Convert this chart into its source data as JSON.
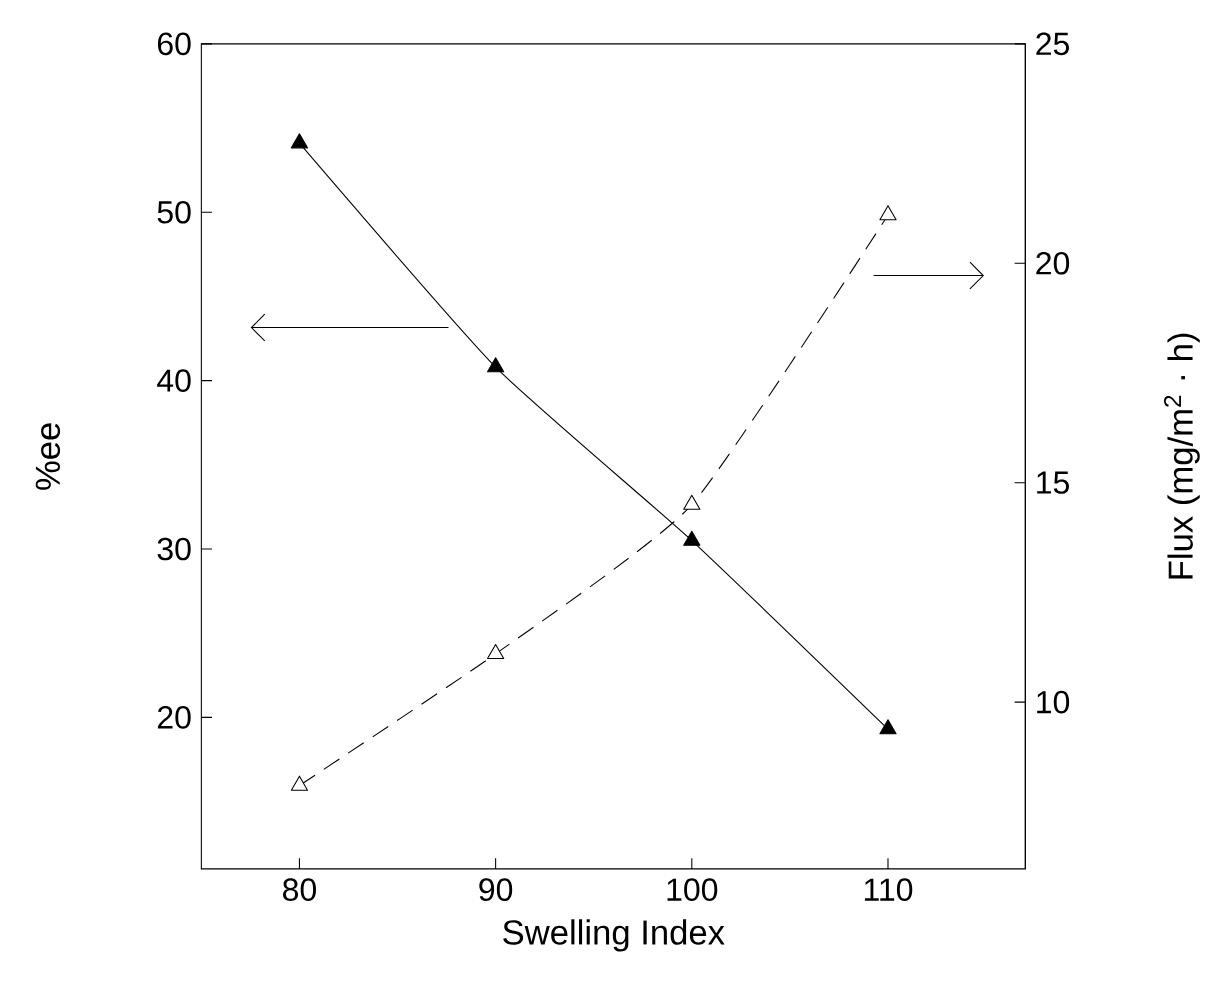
{
  "chart_data": {
    "type": "line",
    "xlabel": "Swelling Index",
    "ylabel": "%ee",
    "y2label": "Flux (mg/m$^{2}$ · h)",
    "x": [
      80,
      90,
      100,
      110
    ],
    "series": [
      {
        "color": "#000000",
        "values": [
          54.1,
          40.8,
          30.5,
          19.3
        ],
        "line_style": "solid",
        "marker": "triangle"
      },
      {
        "color": "#000000",
        "values": [
          8.1,
          11.1,
          14.5,
          21.1
        ],
        "line_style": "dashed",
        "marker": "triangle",
        "axis": "y2"
      }
    ],
    "xlim": [
      75,
      117
    ],
    "ylim": [
      11,
      60
    ],
    "y2lim": [
      6.2,
      25
    ],
    "xticks": [
      80,
      90,
      100,
      110
    ],
    "yticks": [
      20,
      30,
      40,
      50,
      60
    ],
    "y2ticks": [
      10,
      15,
      20,
      25
    ],
    "grid": false
  }
}
